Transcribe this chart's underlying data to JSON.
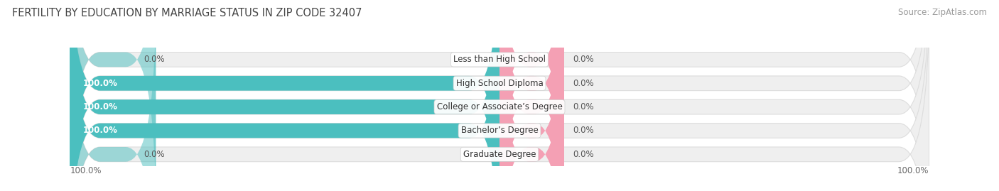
{
  "title": "FERTILITY BY EDUCATION BY MARRIAGE STATUS IN ZIP CODE 32407",
  "source": "Source: ZipAtlas.com",
  "categories": [
    "Less than High School",
    "High School Diploma",
    "College or Associate’s Degree",
    "Bachelor’s Degree",
    "Graduate Degree"
  ],
  "married_values": [
    0.0,
    100.0,
    100.0,
    100.0,
    0.0
  ],
  "unmarried_values": [
    0.0,
    0.0,
    0.0,
    0.0,
    0.0
  ],
  "married_color": "#4bbfbf",
  "unmarried_color": "#f4a0b4",
  "bar_bg_color": "#efefef",
  "bar_stroke_color": "#dddddd",
  "title_fontsize": 10.5,
  "source_fontsize": 8.5,
  "label_fontsize": 8.5,
  "category_fontsize": 8.5,
  "legend_fontsize": 9.5,
  "background_color": "#ffffff",
  "axis_left_label": "100.0%",
  "axis_right_label": "100.0%"
}
